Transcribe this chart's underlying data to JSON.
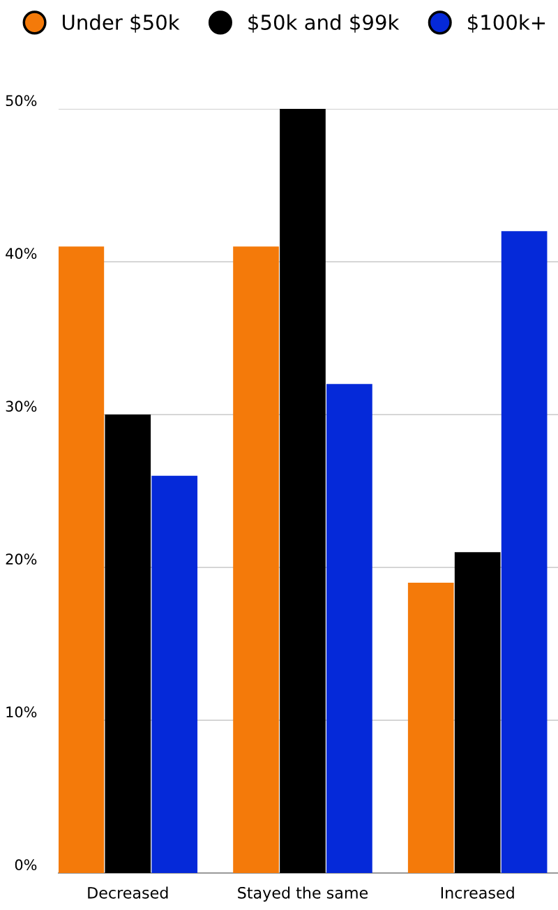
{
  "chart_data": {
    "type": "bar",
    "categories": [
      "Decreased",
      "Stayed the same",
      "Increased"
    ],
    "series": [
      {
        "name": "Under $50k",
        "color": "#f47a0a",
        "values": [
          41,
          41,
          19
        ]
      },
      {
        "name": "$50k and $99k",
        "color": "#000000",
        "values": [
          30,
          50,
          21
        ]
      },
      {
        "name": "$100k+",
        "color": "#0529d9",
        "values": [
          26,
          32,
          42
        ]
      }
    ],
    "ylim": [
      0,
      50
    ],
    "yticks": [
      {
        "value": 0,
        "label": "0%"
      },
      {
        "value": 10,
        "label": "10%"
      },
      {
        "value": 20,
        "label": "20%"
      },
      {
        "value": 30,
        "label": "30%"
      },
      {
        "value": 40,
        "label": "40%"
      },
      {
        "value": 50,
        "label": "50%"
      }
    ],
    "grid": "y",
    "legend": "top"
  }
}
